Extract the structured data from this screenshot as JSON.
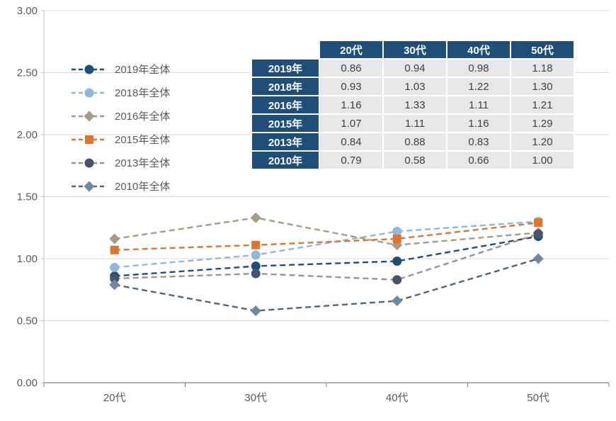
{
  "chart_data": {
    "type": "line",
    "title": "",
    "categories": [
      "20代",
      "30代",
      "40代",
      "50代"
    ],
    "series": [
      {
        "name": "2019年全体",
        "values": [
          0.86,
          0.94,
          0.98,
          1.18
        ],
        "color": "#1F4E79",
        "marker": "circle",
        "dashed": true
      },
      {
        "name": "2018年全体",
        "values": [
          0.93,
          1.03,
          1.22,
          1.3
        ],
        "color": "#8FB8DC",
        "marker": "circle",
        "dashed": true
      },
      {
        "name": "2016年全体",
        "values": [
          1.16,
          1.33,
          1.11,
          1.21
        ],
        "color": "#A89B85",
        "marker": "diamond",
        "dashed": true
      },
      {
        "name": "2015年全体",
        "values": [
          1.07,
          1.11,
          1.16,
          1.29
        ],
        "color": "#DD7430",
        "marker": "square",
        "dashed": true
      },
      {
        "name": "2013年全体",
        "values": [
          0.84,
          0.88,
          0.83,
          1.2
        ],
        "color": "#44546A",
        "line_color": "#9B9488",
        "marker": "circle",
        "dashed": true
      },
      {
        "name": "2010年全体",
        "values": [
          0.79,
          0.58,
          0.66,
          1.0
        ],
        "color": "#6E87A3",
        "line_color": "#4E6577",
        "marker": "diamond",
        "dashed": true
      }
    ],
    "ylim": [
      0,
      3
    ],
    "ytick_step": 0.5,
    "ytick_labels": [
      "3.00",
      "2.50",
      "2.00",
      "1.50",
      "1.00",
      "0.50",
      "0.00"
    ],
    "grid": true,
    "legend_position": "upper-left"
  },
  "table": {
    "corner_label": "",
    "columns": [
      "20代",
      "30代",
      "40代",
      "50代"
    ],
    "rows": [
      {
        "label": "2019年",
        "values": [
          "0.86",
          "0.94",
          "0.98",
          "1.18"
        ]
      },
      {
        "label": "2018年",
        "values": [
          "0.93",
          "1.03",
          "1.22",
          "1.30"
        ]
      },
      {
        "label": "2016年",
        "values": [
          "1.16",
          "1.33",
          "1.11",
          "1.21"
        ]
      },
      {
        "label": "2015年",
        "values": [
          "1.07",
          "1.11",
          "1.16",
          "1.29"
        ]
      },
      {
        "label": "2013年",
        "values": [
          "0.84",
          "0.88",
          "0.83",
          "1.20"
        ]
      },
      {
        "label": "2010年",
        "values": [
          "0.79",
          "0.58",
          "0.66",
          "1.00"
        ]
      }
    ],
    "header_bg": "#1F4E79",
    "cell_bg": "#E7E7E7"
  },
  "colors": {
    "grid": "#D9D9D9",
    "axis": "#808080",
    "axis_left": "#BFBFBF",
    "tick_label": "#595959"
  }
}
